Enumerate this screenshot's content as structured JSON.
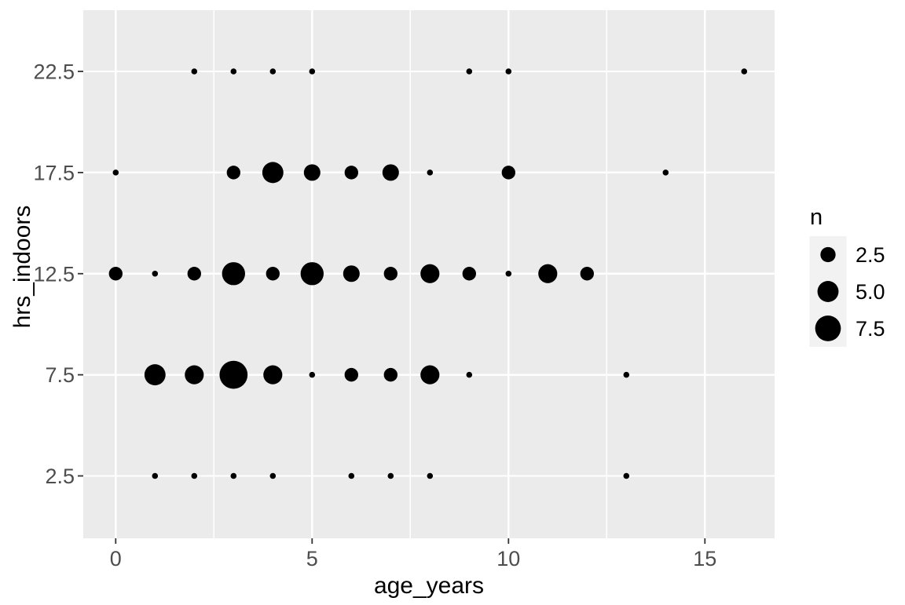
{
  "chart_data": {
    "type": "scatter",
    "variant": "count-bubble (geom_count / ggplot2 theme_grey)",
    "title": "",
    "xlabel": "age_years",
    "ylabel": "hrs_indoors",
    "x_ticks": [
      "0",
      "5",
      "10",
      "15"
    ],
    "x_tick_values": [
      0,
      5,
      10,
      15
    ],
    "x_minor_values": [
      2.5,
      7.5,
      12.5
    ],
    "x_range": [
      -0.825,
      16.775
    ],
    "y_levels": [
      "2.5",
      "7.5",
      "12.5",
      "17.5",
      "22.5"
    ],
    "grid": {
      "x_major": true,
      "x_minor": true,
      "y_major": true,
      "y_minor": false
    },
    "points": [
      {
        "x": 2,
        "y": "22.5",
        "n": 1
      },
      {
        "x": 3,
        "y": "22.5",
        "n": 1
      },
      {
        "x": 4,
        "y": "22.5",
        "n": 1
      },
      {
        "x": 5,
        "y": "22.5",
        "n": 1
      },
      {
        "x": 9,
        "y": "22.5",
        "n": 1
      },
      {
        "x": 10,
        "y": "22.5",
        "n": 1
      },
      {
        "x": 16,
        "y": "22.5",
        "n": 1
      },
      {
        "x": 0,
        "y": "17.5",
        "n": 1
      },
      {
        "x": 3,
        "y": "17.5",
        "n": 2
      },
      {
        "x": 4,
        "y": "17.5",
        "n": 5
      },
      {
        "x": 5,
        "y": "17.5",
        "n": 3
      },
      {
        "x": 6,
        "y": "17.5",
        "n": 2
      },
      {
        "x": 7,
        "y": "17.5",
        "n": 3
      },
      {
        "x": 8,
        "y": "17.5",
        "n": 1
      },
      {
        "x": 10,
        "y": "17.5",
        "n": 2
      },
      {
        "x": 14,
        "y": "17.5",
        "n": 1
      },
      {
        "x": 0,
        "y": "12.5",
        "n": 2
      },
      {
        "x": 1,
        "y": "12.5",
        "n": 1
      },
      {
        "x": 2,
        "y": "12.5",
        "n": 2
      },
      {
        "x": 3,
        "y": "12.5",
        "n": 6
      },
      {
        "x": 4,
        "y": "12.5",
        "n": 2
      },
      {
        "x": 5,
        "y": "12.5",
        "n": 6
      },
      {
        "x": 6,
        "y": "12.5",
        "n": 3
      },
      {
        "x": 7,
        "y": "12.5",
        "n": 2
      },
      {
        "x": 8,
        "y": "12.5",
        "n": 4
      },
      {
        "x": 9,
        "y": "12.5",
        "n": 2
      },
      {
        "x": 10,
        "y": "12.5",
        "n": 1
      },
      {
        "x": 11,
        "y": "12.5",
        "n": 4
      },
      {
        "x": 12,
        "y": "12.5",
        "n": 2
      },
      {
        "x": 1,
        "y": "7.5",
        "n": 5
      },
      {
        "x": 2,
        "y": "7.5",
        "n": 4
      },
      {
        "x": 3,
        "y": "7.5",
        "n": 9
      },
      {
        "x": 4,
        "y": "7.5",
        "n": 4
      },
      {
        "x": 5,
        "y": "7.5",
        "n": 1
      },
      {
        "x": 6,
        "y": "7.5",
        "n": 2
      },
      {
        "x": 7,
        "y": "7.5",
        "n": 2
      },
      {
        "x": 8,
        "y": "7.5",
        "n": 4
      },
      {
        "x": 9,
        "y": "7.5",
        "n": 1
      },
      {
        "x": 13,
        "y": "7.5",
        "n": 1
      },
      {
        "x": 1,
        "y": "2.5",
        "n": 1
      },
      {
        "x": 2,
        "y": "2.5",
        "n": 1
      },
      {
        "x": 3,
        "y": "2.5",
        "n": 1
      },
      {
        "x": 4,
        "y": "2.5",
        "n": 1
      },
      {
        "x": 6,
        "y": "2.5",
        "n": 1
      },
      {
        "x": 7,
        "y": "2.5",
        "n": 1
      },
      {
        "x": 8,
        "y": "2.5",
        "n": 1
      },
      {
        "x": 13,
        "y": "2.5",
        "n": 1
      }
    ],
    "legend": {
      "title": "n",
      "position": "right",
      "entries": [
        {
          "label": "2.5",
          "n": 2.5
        },
        {
          "label": "5.0",
          "n": 5.0
        },
        {
          "label": "7.5",
          "n": 7.5
        }
      ]
    },
    "size_scale": {
      "min_radius_px": 3.8,
      "radius_a": 0.5,
      "radius_b_per_sqrt_n": 5.79
    },
    "colors": {
      "plot_bg": "#FFFFFF",
      "panel_bg": "#EBEBEB",
      "gridline": "#FFFFFF",
      "point": "#000000",
      "tick_mark": "#333333",
      "axis_text": "#4D4D4D",
      "axis_title": "#000000",
      "legend_text": "#000000",
      "legend_key_bg": "#F2F2F2"
    }
  }
}
